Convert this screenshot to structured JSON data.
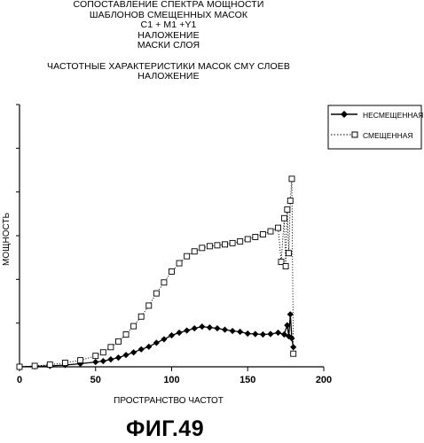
{
  "title_lines": [
    "СОПОСТАВЛЕНИЕ СПЕКТРА МОЩНОСТИ",
    "ШАБЛОНОВ СМЕЩЕННЫХ МАСОК",
    "C1 + M1 +Y1",
    "НАЛОЖЕНИЕ",
    "МАСКИ СЛОЯ"
  ],
  "subtitle_lines": [
    "ЧАСТОТНЫЕ ХАРАКТЕРИСТИКИ МАСОК CMY СЛОЕВ",
    "НАЛОЖЕНИЕ"
  ],
  "figure_label": "ФИГ.49",
  "chart_data": {
    "type": "line",
    "xlabel": "ПРОСТРАНСТВО ЧАСТОТ",
    "ylabel": "МОЩНОСТЬ",
    "xlim": [
      0,
      200
    ],
    "ylim": [
      0,
      6
    ],
    "x_ticks": [
      0,
      50,
      100,
      150,
      200
    ],
    "y_tick_count": 6,
    "y_tick_labels_shown": false,
    "grid": false,
    "legend_position": "top-right",
    "series": [
      {
        "name": "НЕСМЕЩЕННАЯ",
        "marker": "filled-diamond",
        "line": "solid",
        "color": "#000000",
        "points": [
          [
            0,
            0
          ],
          [
            10,
            0.01
          ],
          [
            20,
            0.02
          ],
          [
            30,
            0.04
          ],
          [
            40,
            0.07
          ],
          [
            50,
            0.11
          ],
          [
            55,
            0.13
          ],
          [
            60,
            0.17
          ],
          [
            65,
            0.21
          ],
          [
            70,
            0.27
          ],
          [
            75,
            0.33
          ],
          [
            80,
            0.4
          ],
          [
            85,
            0.46
          ],
          [
            90,
            0.55
          ],
          [
            95,
            0.63
          ],
          [
            100,
            0.72
          ],
          [
            105,
            0.78
          ],
          [
            110,
            0.83
          ],
          [
            115,
            0.88
          ],
          [
            120,
            0.92
          ],
          [
            125,
            0.9
          ],
          [
            130,
            0.88
          ],
          [
            135,
            0.85
          ],
          [
            140,
            0.82
          ],
          [
            145,
            0.8
          ],
          [
            150,
            0.76
          ],
          [
            155,
            0.75
          ],
          [
            160,
            0.74
          ],
          [
            165,
            0.75
          ],
          [
            170,
            0.78
          ],
          [
            174,
            0.74
          ],
          [
            176,
            0.95
          ],
          [
            177,
            0.7
          ],
          [
            178,
            1.2
          ],
          [
            179,
            0.65
          ],
          [
            180,
            0.45
          ]
        ]
      },
      {
        "name": "СМЕЩЕННАЯ",
        "marker": "open-square",
        "line": "dotted",
        "color": "#000000",
        "points": [
          [
            0,
            0
          ],
          [
            10,
            0.02
          ],
          [
            20,
            0.05
          ],
          [
            30,
            0.09
          ],
          [
            40,
            0.15
          ],
          [
            50,
            0.25
          ],
          [
            55,
            0.33
          ],
          [
            60,
            0.45
          ],
          [
            65,
            0.58
          ],
          [
            70,
            0.74
          ],
          [
            75,
            0.93
          ],
          [
            80,
            1.15
          ],
          [
            85,
            1.4
          ],
          [
            90,
            1.68
          ],
          [
            95,
            1.93
          ],
          [
            100,
            2.18
          ],
          [
            105,
            2.37
          ],
          [
            110,
            2.53
          ],
          [
            115,
            2.64
          ],
          [
            120,
            2.72
          ],
          [
            125,
            2.76
          ],
          [
            130,
            2.78
          ],
          [
            135,
            2.8
          ],
          [
            140,
            2.83
          ],
          [
            145,
            2.87
          ],
          [
            150,
            2.92
          ],
          [
            155,
            2.97
          ],
          [
            160,
            3.03
          ],
          [
            165,
            3.1
          ],
          [
            170,
            3.18
          ],
          [
            172,
            2.4
          ],
          [
            174,
            3.4
          ],
          [
            175,
            2.3
          ],
          [
            176,
            3.6
          ],
          [
            177,
            2.6
          ],
          [
            178,
            3.8
          ],
          [
            179,
            4.3
          ],
          [
            180,
            0.3
          ]
        ]
      }
    ]
  }
}
